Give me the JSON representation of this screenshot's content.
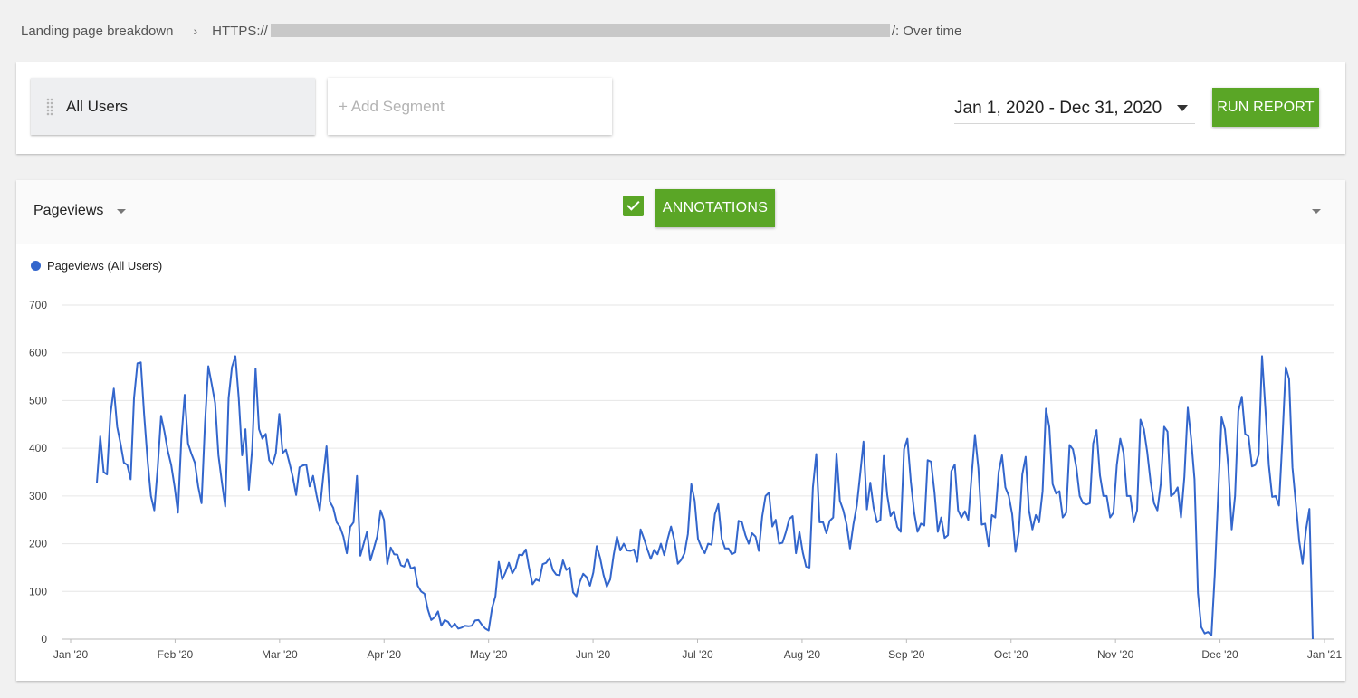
{
  "breadcrumb": {
    "root": "Landing page breakdown",
    "separator": "›",
    "url_prefix": "HTTPS://",
    "suffix": "/: Over time"
  },
  "segments": {
    "active": "All Users",
    "add_placeholder": "+ Add Segment"
  },
  "date_range": {
    "value": "Jan 1, 2020 - Dec 31, 2020"
  },
  "run_report": {
    "label": "RUN REPORT"
  },
  "chart_header": {
    "metric": "Pageviews",
    "annotations_label": "ANNOTATIONS",
    "annotations_checked": true
  },
  "colors": {
    "accent": "#5aa626",
    "series": "#3366cc"
  },
  "chart_data": {
    "type": "line",
    "title": "",
    "xlabel": "",
    "ylabel": "",
    "ylim": [
      0,
      700
    ],
    "yticks": [
      0,
      100,
      200,
      300,
      400,
      500,
      600,
      700
    ],
    "x_start": "2020-01-01",
    "x_end": "2020-12-31",
    "xticks": [
      "Jan '20",
      "Feb '20",
      "Mar '20",
      "Apr '20",
      "May '20",
      "Jun '20",
      "Jul '20",
      "Aug '20",
      "Sep '20",
      "Oct '20",
      "Nov '20",
      "Dec '20",
      "Jan '21"
    ],
    "grid": true,
    "legend_position": "top-left",
    "series": [
      {
        "name": "Pageviews (All Users)",
        "color": "#3366cc",
        "values": [
          328,
          425,
          350,
          345,
          470,
          525,
          445,
          410,
          370,
          365,
          335,
          505,
          578,
          580,
          470,
          375,
          300,
          270,
          360,
          468,
          435,
          395,
          365,
          320,
          265,
          420,
          512,
          410,
          388,
          370,
          320,
          285,
          452,
          572,
          535,
          495,
          385,
          330,
          278,
          505,
          570,
          593,
          505,
          385,
          440,
          313,
          400,
          567,
          440,
          420,
          430,
          375,
          365,
          390,
          472,
          390,
          397,
          370,
          340,
          302,
          360,
          364,
          366,
          320,
          342,
          303,
          270,
          338,
          404,
          288,
          275,
          245,
          235,
          215,
          180,
          235,
          245,
          342,
          175,
          200,
          225,
          165,
          190,
          215,
          270,
          250,
          157,
          192,
          178,
          177,
          155,
          152,
          168,
          148,
          151,
          112,
          100,
          95,
          62,
          40,
          46,
          58,
          28,
          40,
          36,
          25,
          32,
          22,
          24,
          28,
          27,
          28,
          39,
          40,
          30,
          22,
          18,
          65,
          90,
          162,
          125,
          140,
          160,
          138,
          150,
          177,
          176,
          188,
          148,
          115,
          125,
          122,
          157,
          160,
          170,
          145,
          135,
          134,
          165,
          145,
          150,
          98,
          90,
          120,
          137,
          130,
          112,
          140,
          195,
          170,
          135,
          110,
          125,
          176,
          215,
          186,
          200,
          186,
          185,
          188,
          162,
          230,
          210,
          188,
          168,
          187,
          178,
          200,
          176,
          210,
          236,
          207,
          158,
          166,
          180,
          220,
          325,
          290,
          210,
          192,
          180,
          200,
          198,
          262,
          283,
          210,
          190,
          190,
          178,
          182,
          248,
          245,
          218,
          200,
          222,
          215,
          185,
          257,
          300,
          307,
          236,
          250,
          200,
          202,
          224,
          252,
          258,
          180,
          225,
          182,
          152,
          150,
          318,
          388,
          245,
          245,
          222,
          248,
          255,
          389,
          290,
          270,
          240,
          190,
          240,
          280,
          345,
          414,
          272,
          328,
          275,
          245,
          250,
          384,
          302,
          258,
          268,
          235,
          225,
          398,
          420,
          330,
          265,
          225,
          242,
          238,
          375,
          372,
          308,
          225,
          255,
          212,
          218,
          352,
          366,
          270,
          255,
          268,
          250,
          342,
          428,
          358,
          240,
          242,
          195,
          260,
          255,
          350,
          385,
          318,
          300,
          262,
          183,
          225,
          345,
          382,
          270,
          230,
          260,
          245,
          310,
          483,
          445,
          325,
          305,
          310,
          255,
          265,
          407,
          398,
          360,
          300,
          285,
          282,
          285,
          410,
          438,
          343,
          300,
          300,
          255,
          265,
          365,
          420,
          390,
          300,
          300,
          245,
          270,
          460,
          440,
          392,
          330,
          285,
          270,
          325,
          445,
          435,
          300,
          305,
          318,
          255,
          340,
          485,
          420,
          335,
          97,
          25,
          12,
          15,
          8,
          135,
          300,
          465,
          440,
          362,
          230,
          300,
          478,
          508,
          430,
          425,
          362,
          365,
          387,
          593,
          480,
          365,
          298,
          300,
          280,
          415,
          570,
          545,
          360,
          285,
          205,
          158,
          228,
          273,
          0
        ]
      }
    ]
  }
}
